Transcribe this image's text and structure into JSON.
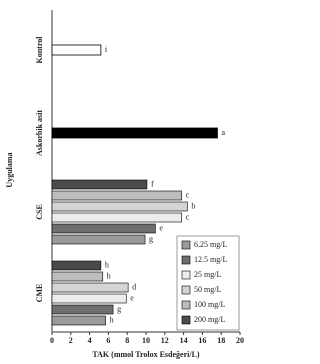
{
  "chart_data": {
    "type": "bar",
    "orientation": "horizontal",
    "x_label": "TAK (mmol Trolox Esdeğeri/L)",
    "y_label": "Uygulama",
    "categories": [
      "Kontrol",
      "Askorbik asit",
      "CSE",
      "CME"
    ],
    "xlim": [
      0,
      20
    ],
    "xticks": [
      0,
      2,
      4,
      6,
      8,
      10,
      12,
      14,
      16,
      18,
      20
    ],
    "single_bars": [
      {
        "value": 5.2,
        "color": "#ffffff",
        "value_label": "i"
      },
      {
        "value": 17.6,
        "color": "#000000",
        "value_label": "a"
      },
      null,
      null
    ],
    "series": [
      {
        "name": "6.25 mg/L",
        "color": "#9a9a9a",
        "values": [
          null,
          null,
          9.9,
          5.7
        ],
        "value_labels": [
          null,
          null,
          "g",
          "h"
        ]
      },
      {
        "name": "12.5 mg/L",
        "color": "#6e6e6e",
        "values": [
          null,
          null,
          11.0,
          6.5
        ],
        "value_labels": [
          null,
          null,
          "e",
          "g"
        ]
      },
      {
        "name": "25 mg/L",
        "color": "#ececec",
        "values": [
          null,
          null,
          13.8,
          7.9
        ],
        "value_labels": [
          null,
          null,
          "c",
          "e"
        ]
      },
      {
        "name": "50 mg/L",
        "color": "#d4d4d4",
        "values": [
          null,
          null,
          14.4,
          8.1
        ],
        "value_labels": [
          null,
          null,
          "b",
          "d"
        ]
      },
      {
        "name": "100 mg/L",
        "color": "#bdbdbd",
        "values": [
          null,
          null,
          13.8,
          5.4
        ],
        "value_labels": [
          null,
          null,
          "c",
          "h"
        ]
      },
      {
        "name": "200 mg/L",
        "color": "#4a4a4a",
        "values": [
          null,
          null,
          10.1,
          5.2
        ],
        "value_labels": [
          null,
          null,
          "f",
          "h"
        ]
      }
    ],
    "legend": "lower right"
  }
}
